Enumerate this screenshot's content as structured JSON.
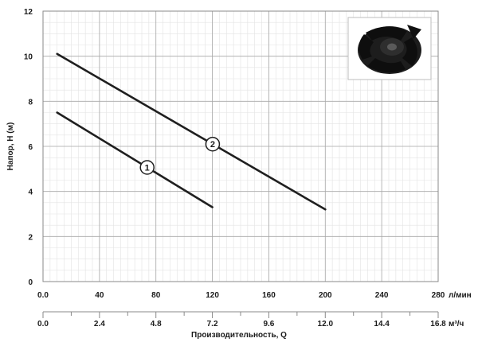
{
  "chart_data": {
    "type": "line",
    "ylabel": "Напор, H (м)",
    "xlabel": "Производительность, Q",
    "y_ticks": [
      "0",
      "2",
      "4",
      "6",
      "8",
      "10",
      "12"
    ],
    "ylim": [
      0,
      12
    ],
    "x_primary": {
      "unit": "л/мин",
      "ticks": [
        "0.0",
        "40",
        "80",
        "120",
        "160",
        "200",
        "240",
        "280"
      ],
      "range": [
        0,
        280
      ]
    },
    "x_secondary": {
      "unit": "м³/ч",
      "ticks": [
        "0.0",
        "2.4",
        "4.8",
        "7.2",
        "9.6",
        "12.0",
        "14.4",
        "16.8"
      ],
      "range": [
        0,
        16.8
      ]
    },
    "grid": true,
    "series": [
      {
        "name": "1",
        "x": [
          10,
          120
        ],
        "y": [
          7.5,
          3.3
        ]
      },
      {
        "name": "2",
        "x": [
          10,
          200
        ],
        "y": [
          10.1,
          3.2
        ]
      }
    ],
    "inset_image": "impeller-photo"
  }
}
